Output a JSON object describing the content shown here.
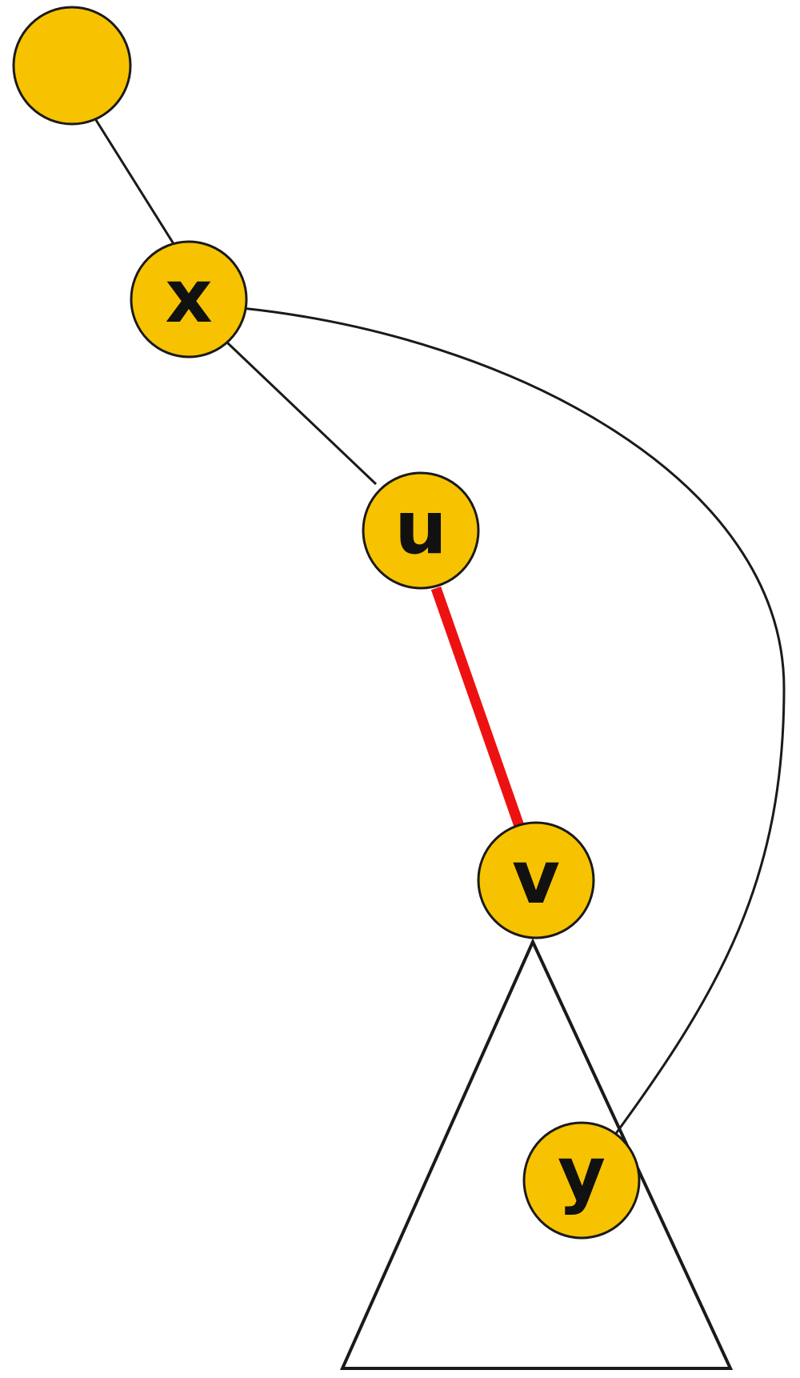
{
  "colors": {
    "node_fill": "#F7C300",
    "node_stroke": "#1a1a1a",
    "edge": "#1a1a1a",
    "highlight_edge": "#EE1111",
    "background": "#ffffff"
  },
  "nodes": {
    "root": {
      "label": ""
    },
    "x": {
      "label": "x"
    },
    "u": {
      "label": "u"
    },
    "v": {
      "label": "v"
    },
    "y": {
      "label": "y"
    }
  },
  "edges": [
    {
      "from": "root",
      "to": "x",
      "style": "normal"
    },
    {
      "from": "x",
      "to": "u",
      "style": "normal"
    },
    {
      "from": "u",
      "to": "v",
      "style": "highlighted"
    },
    {
      "from": "x",
      "to": "y",
      "style": "curved"
    }
  ],
  "subtree": {
    "root": "v",
    "contains": [
      "y"
    ]
  }
}
